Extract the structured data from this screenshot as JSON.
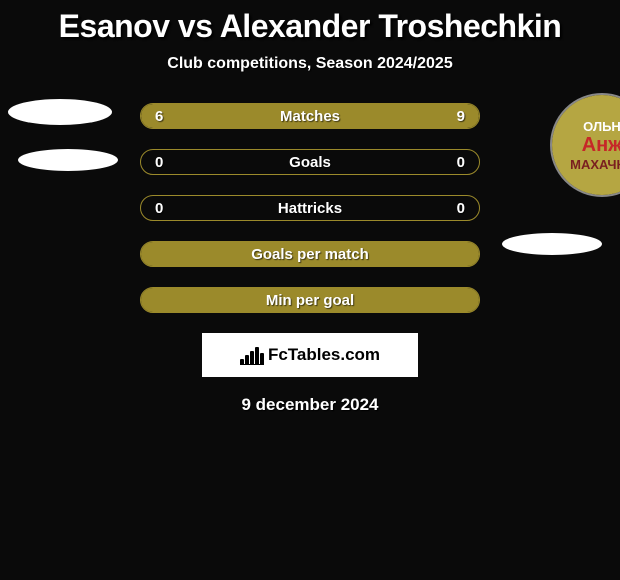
{
  "title": "Esanov vs Alexander Troshechkin",
  "subtitle": "Club competitions, Season 2024/2025",
  "colors": {
    "background": "#0a0a0a",
    "bar_fill": "#9b8a2b",
    "bar_border": "#9b8a2b",
    "text": "#ffffff"
  },
  "players": {
    "left": {
      "name": "Esanov"
    },
    "right": {
      "name": "Alexander Troshechkin",
      "badge_top": "ОЛЬН",
      "badge_mid": "Анж",
      "badge_bot": "МАХАЧКА"
    }
  },
  "bars": [
    {
      "label": "Matches",
      "left": "6",
      "right": "9",
      "left_pct": 40,
      "right_pct": 60,
      "show_values": true
    },
    {
      "label": "Goals",
      "left": "0",
      "right": "0",
      "left_pct": 0,
      "right_pct": 0,
      "show_values": true
    },
    {
      "label": "Hattricks",
      "left": "0",
      "right": "0",
      "left_pct": 0,
      "right_pct": 0,
      "show_values": true
    },
    {
      "label": "Goals per match",
      "left": "",
      "right": "",
      "left_pct": 100,
      "right_pct": 0,
      "show_values": false,
      "full": true
    },
    {
      "label": "Min per goal",
      "left": "",
      "right": "",
      "left_pct": 100,
      "right_pct": 0,
      "show_values": false,
      "full": true
    }
  ],
  "logo_text": "FcTables.com",
  "date": "9 december 2024"
}
